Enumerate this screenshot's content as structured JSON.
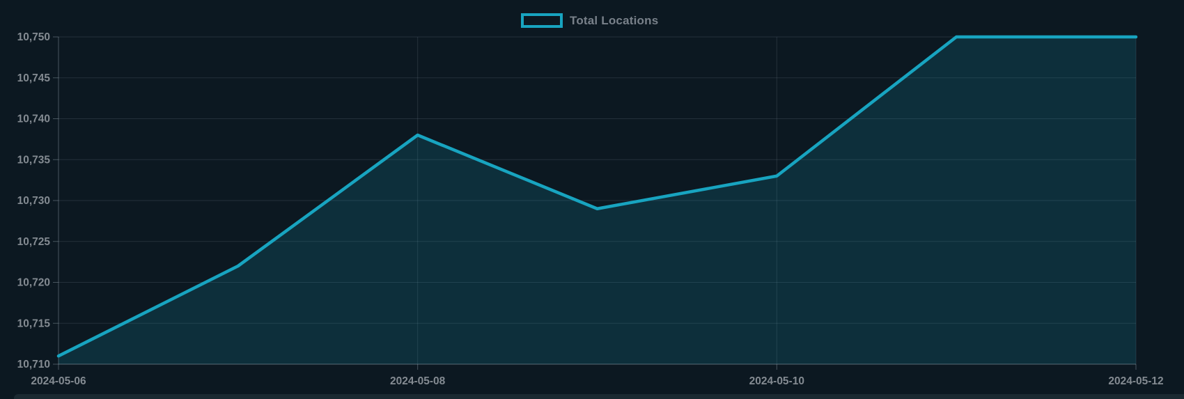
{
  "legend": {
    "label": "Total Locations"
  },
  "colors": {
    "background": "#0c1821",
    "line": "#18a4c0",
    "fill": "rgba(24,164,192,0.17)",
    "grid": "rgba(186,200,210,0.14)",
    "axis": "rgba(186,200,210,0.35)",
    "text": "#848b92",
    "legend_text": "#79818a",
    "bottom_strip": "#1b2931"
  },
  "chart_data": {
    "type": "area",
    "title": "",
    "xlabel": "",
    "ylabel": "",
    "x": [
      "2024-05-06",
      "2024-05-07",
      "2024-05-08",
      "2024-05-09",
      "2024-05-10",
      "2024-05-11",
      "2024-05-12"
    ],
    "series": [
      {
        "name": "Total Locations",
        "values": [
          10711,
          10722,
          10738,
          10729,
          10733,
          10750,
          10750
        ]
      }
    ],
    "x_tick_indices": [
      0,
      2,
      4,
      6
    ],
    "x_tick_labels": [
      "2024-05-06",
      "2024-05-08",
      "2024-05-10",
      "2024-05-12"
    ],
    "y_ticks": [
      10710,
      10715,
      10720,
      10725,
      10730,
      10735,
      10740,
      10745,
      10750
    ],
    "y_tick_labels": [
      "10,710",
      "10,715",
      "10,720",
      "10,725",
      "10,730",
      "10,735",
      "10,740",
      "10,745",
      "10,750"
    ],
    "ylim": [
      10710,
      10750
    ],
    "grid": true,
    "legend_position": "top-center"
  }
}
